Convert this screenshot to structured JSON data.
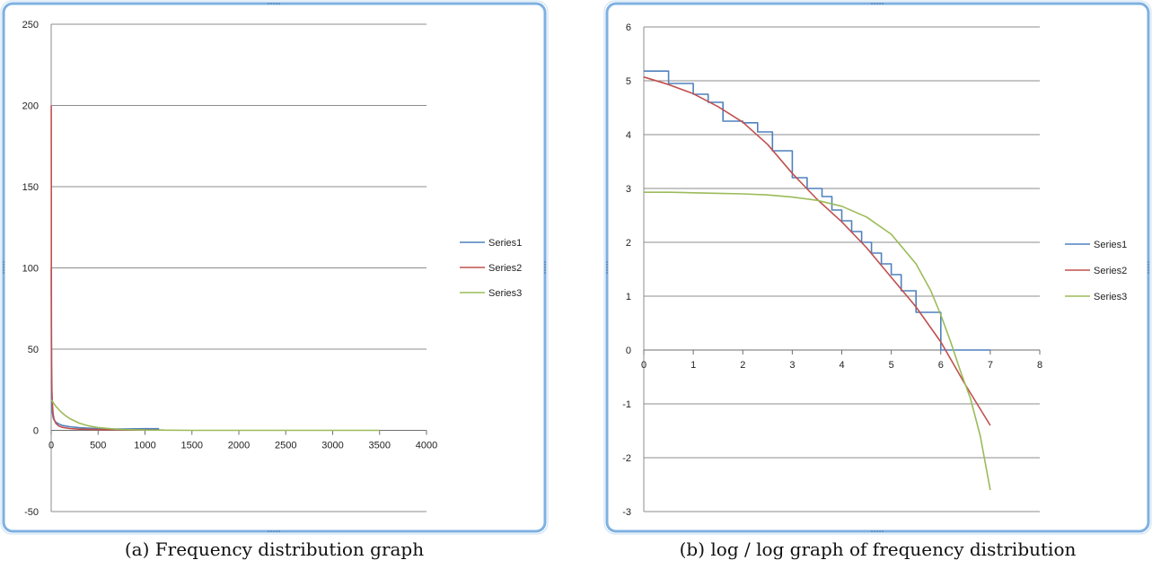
{
  "chart_data": [
    {
      "id": "a",
      "type": "line",
      "caption": "(a) Frequency distribution graph",
      "xlim": [
        0,
        4000
      ],
      "ylim": [
        -50,
        250
      ],
      "xticks": [
        0,
        500,
        1000,
        1500,
        2000,
        2500,
        3000,
        3500,
        4000
      ],
      "yticks": [
        -50,
        0,
        50,
        100,
        150,
        200,
        250
      ],
      "grid": "horizontal",
      "legend_position": "right",
      "series": [
        {
          "name": "Series1",
          "color": "#4f81bd",
          "x": [
            1,
            2,
            3,
            5,
            8,
            12,
            20,
            30,
            50,
            80,
            120,
            200,
            300,
            500,
            700,
            1000,
            1150
          ],
          "y": [
            100,
            60,
            35,
            22,
            15,
            11,
            8,
            6.5,
            5,
            4,
            3,
            2.2,
            1.6,
            1,
            0.8,
            1,
            1
          ]
        },
        {
          "name": "Series2",
          "color": "#c0504d",
          "x": [
            1,
            1.5,
            2,
            3,
            5,
            8,
            12,
            20,
            30,
            50,
            80,
            120,
            200,
            300,
            500,
            800,
            1200
          ],
          "y": [
            200,
            140,
            100,
            65,
            40,
            25,
            17,
            10.5,
            7,
            4.3,
            2.7,
            1.8,
            1.1,
            0.7,
            0.43,
            0.27,
            0.18
          ]
        },
        {
          "name": "Series3",
          "color": "#9bbb59",
          "x": [
            1,
            50,
            100,
            150,
            200,
            300,
            400,
            500,
            700,
            1000,
            1500,
            2000,
            2500,
            3000,
            3500
          ],
          "y": [
            18.8,
            14.8,
            11.6,
            9.1,
            7.2,
            4.4,
            2.7,
            1.7,
            0.66,
            0.16,
            0.02,
            0.01,
            0,
            0,
            0
          ]
        }
      ]
    },
    {
      "id": "b",
      "type": "line",
      "caption": "(b) log / log graph of frequency distribution",
      "xlim": [
        0,
        8
      ],
      "ylim": [
        -3,
        6
      ],
      "xticks": [
        0,
        1,
        2,
        3,
        4,
        5,
        6,
        7,
        8
      ],
      "yticks": [
        -3,
        -2,
        -1,
        0,
        1,
        2,
        3,
        4,
        5,
        6
      ],
      "grid": "horizontal",
      "legend_position": "right",
      "series": [
        {
          "name": "Series1",
          "color": "#4f81bd",
          "step": true,
          "x": [
            0,
            0.5,
            1.0,
            1.3,
            1.6,
            2.0,
            2.3,
            2.6,
            3.0,
            3.3,
            3.6,
            3.8,
            4.0,
            4.2,
            4.4,
            4.6,
            4.8,
            5.0,
            5.2,
            5.5,
            5.7,
            6.0,
            7.0
          ],
          "y": [
            5.18,
            4.95,
            4.75,
            4.6,
            4.25,
            4.22,
            4.05,
            3.7,
            3.2,
            3.0,
            2.85,
            2.6,
            2.4,
            2.2,
            2.0,
            1.8,
            1.6,
            1.4,
            1.1,
            0.7,
            0.7,
            0,
            0
          ]
        },
        {
          "name": "Series2",
          "color": "#c0504d",
          "x": [
            0,
            0.5,
            1,
            1.5,
            2,
            2.5,
            3,
            3.5,
            4,
            4.5,
            5,
            5.5,
            6,
            6.5,
            7
          ],
          "y": [
            5.07,
            4.93,
            4.76,
            4.52,
            4.23,
            3.82,
            3.28,
            2.8,
            2.38,
            1.9,
            1.35,
            0.8,
            0.15,
            -0.65,
            -1.4
          ]
        },
        {
          "name": "Series3",
          "color": "#9bbb59",
          "x": [
            0,
            0.5,
            1,
            1.5,
            2,
            2.5,
            3,
            3.5,
            4,
            4.5,
            5,
            5.5,
            5.8,
            6.0,
            6.2,
            6.4,
            6.6,
            6.8,
            7.0
          ],
          "y": [
            2.93,
            2.93,
            2.92,
            2.91,
            2.9,
            2.88,
            2.84,
            2.78,
            2.67,
            2.47,
            2.15,
            1.6,
            1.1,
            0.65,
            0.15,
            -0.4,
            -0.9,
            -1.6,
            -2.6
          ]
        }
      ]
    }
  ]
}
